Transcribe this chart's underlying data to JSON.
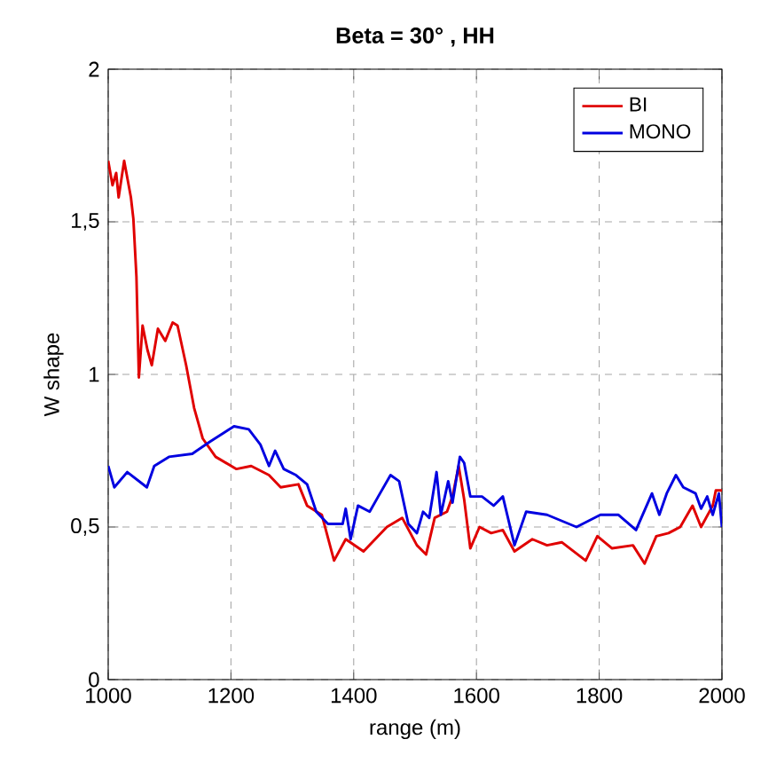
{
  "chart_data": {
    "type": "line",
    "title": "Beta = 30° , HH",
    "xlabel": "range (m)",
    "ylabel": "W shape",
    "xlim": [
      1000,
      2000
    ],
    "ylim": [
      0,
      2
    ],
    "xticks": [
      1000,
      1200,
      1400,
      1600,
      1800,
      2000
    ],
    "yticks": [
      0,
      {
        "value": 0.5,
        "label": "0,5"
      },
      1,
      {
        "value": 1.5,
        "label": "1,5"
      },
      2
    ],
    "grid": true,
    "legend": "top right",
    "series": [
      {
        "name": "BI",
        "color": "#e00000",
        "x": [
          1000,
          1007,
          1013,
          1017,
          1026,
          1037,
          1041,
          1046,
          1050,
          1056,
          1064,
          1071,
          1081,
          1093,
          1105,
          1113,
          1127,
          1140,
          1154,
          1175,
          1209,
          1233,
          1262,
          1281,
          1310,
          1324,
          1348,
          1368,
          1387,
          1416,
          1454,
          1479,
          1503,
          1518,
          1532,
          1552,
          1561,
          1571,
          1580,
          1590,
          1605,
          1624,
          1643,
          1662,
          1691,
          1715,
          1739,
          1778,
          1797,
          1821,
          1855,
          1874,
          1893,
          1913,
          1932,
          1952,
          1966,
          1985,
          1990,
          2000
        ],
        "values": [
          1.7,
          1.62,
          1.66,
          1.58,
          1.7,
          1.58,
          1.51,
          1.32,
          0.99,
          1.16,
          1.08,
          1.03,
          1.15,
          1.11,
          1.17,
          1.16,
          1.03,
          0.89,
          0.79,
          0.73,
          0.69,
          0.7,
          0.67,
          0.63,
          0.64,
          0.57,
          0.54,
          0.39,
          0.46,
          0.42,
          0.5,
          0.53,
          0.44,
          0.41,
          0.53,
          0.55,
          0.6,
          0.7,
          0.59,
          0.43,
          0.5,
          0.48,
          0.49,
          0.42,
          0.46,
          0.44,
          0.45,
          0.39,
          0.47,
          0.43,
          0.44,
          0.38,
          0.47,
          0.48,
          0.5,
          0.57,
          0.5,
          0.57,
          0.62,
          0.62
        ]
      },
      {
        "name": "MONO",
        "color": "#0000e0",
        "x": [
          1000,
          1010,
          1031,
          1063,
          1075,
          1099,
          1137,
          1166,
          1205,
          1229,
          1248,
          1262,
          1272,
          1286,
          1306,
          1324,
          1339,
          1358,
          1382,
          1387,
          1395,
          1407,
          1426,
          1440,
          1460,
          1474,
          1489,
          1503,
          1513,
          1523,
          1535,
          1542,
          1554,
          1561,
          1573,
          1580,
          1590,
          1609,
          1628,
          1643,
          1662,
          1681,
          1715,
          1763,
          1802,
          1831,
          1860,
          1886,
          1898,
          1910,
          1925,
          1937,
          1957,
          1966,
          1976,
          1985,
          1995,
          2000
        ],
        "values": [
          0.7,
          0.63,
          0.68,
          0.63,
          0.7,
          0.73,
          0.74,
          0.78,
          0.83,
          0.82,
          0.77,
          0.7,
          0.75,
          0.69,
          0.67,
          0.64,
          0.55,
          0.51,
          0.51,
          0.56,
          0.46,
          0.57,
          0.55,
          0.6,
          0.67,
          0.65,
          0.51,
          0.48,
          0.55,
          0.53,
          0.68,
          0.54,
          0.65,
          0.58,
          0.73,
          0.71,
          0.6,
          0.6,
          0.57,
          0.6,
          0.44,
          0.55,
          0.54,
          0.5,
          0.54,
          0.54,
          0.49,
          0.61,
          0.54,
          0.61,
          0.67,
          0.63,
          0.61,
          0.56,
          0.6,
          0.54,
          0.61,
          0.5
        ]
      }
    ]
  }
}
